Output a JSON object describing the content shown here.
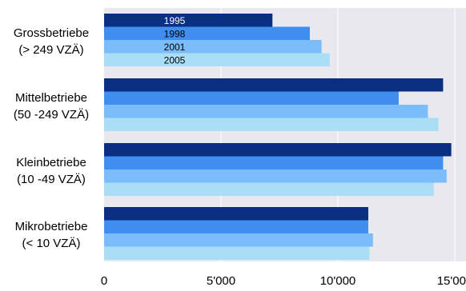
{
  "chart_data": {
    "type": "bar",
    "orientation": "horizontal",
    "categories": [
      [
        "Grossbetriebe",
        "(> 249 VZÄ)"
      ],
      [
        "Mittelbetriebe",
        "(50 -249 VZÄ)"
      ],
      [
        "Kleinbetriebe",
        "(10 -49 VZÄ)"
      ],
      [
        "Mikrobetriebe",
        "(< 10 VZÄ)"
      ]
    ],
    "series": [
      {
        "name": "1995",
        "color": "#0a2f80",
        "values": [
          7200,
          14500,
          14850,
          11300
        ]
      },
      {
        "name": "1998",
        "color": "#3f8ef0",
        "values": [
          8800,
          12600,
          14500,
          11300
        ]
      },
      {
        "name": "2001",
        "color": "#7bbcfb",
        "values": [
          9300,
          13850,
          14650,
          11500
        ]
      },
      {
        "name": "2005",
        "color": "#a9def6",
        "values": [
          9650,
          14300,
          14100,
          11350
        ]
      }
    ],
    "xlim": [
      0,
      15000
    ],
    "xticks": [
      0,
      5000,
      10000,
      15000
    ],
    "xtick_labels": [
      "0",
      "5'000",
      "10'000",
      "15'000"
    ],
    "grid": true,
    "legend_labels_inside_first_group": true,
    "plot_background": "#e8e8ee",
    "gridline_color": "#ffffff"
  }
}
